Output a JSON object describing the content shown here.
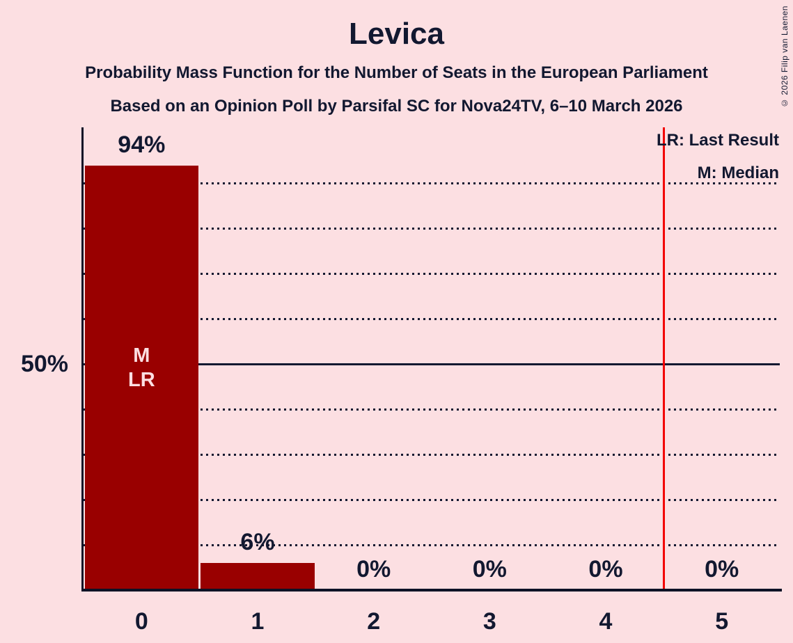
{
  "page": {
    "title": "Levica",
    "subtitle_line1": "Probability Mass Function for the Number of Seats in the European Parliament",
    "subtitle_line2": "Based on an Opinion Poll by Parsifal SC for Nova24TV, 6–10 March 2026",
    "copyright": "© 2026 Filip van Laenen",
    "background_color": "#fcdfe2",
    "text_color": "#121830"
  },
  "legend": {
    "last_result": "LR: Last Result",
    "median": "M: Median"
  },
  "chart_data": {
    "type": "bar",
    "title": "Levica",
    "categories": [
      "0",
      "1",
      "2",
      "3",
      "4",
      "5"
    ],
    "values": [
      94,
      6,
      0,
      0,
      0,
      0
    ],
    "value_labels": [
      "94%",
      "6%",
      "0%",
      "0%",
      "0%",
      "0%"
    ],
    "xlabel": "",
    "ylabel": "",
    "ylim": [
      0,
      100
    ],
    "y_axis_tick_label": "50%",
    "y_axis_tick_value": 50,
    "gridlines_percent": [
      10,
      20,
      30,
      40,
      50,
      60,
      70,
      80,
      90
    ],
    "solid_gridline_percent": 50,
    "grid": true,
    "legend_position": "top-right",
    "bar_markers": [
      [
        "M",
        "LR"
      ],
      [],
      [],
      [],
      [],
      []
    ],
    "median_seats": 0,
    "last_result_seats": 0,
    "red_line_position": 4.5,
    "bar_color": "#990000",
    "bar_label_color": "#fcdfe2",
    "red_line_color": "#f20000"
  }
}
